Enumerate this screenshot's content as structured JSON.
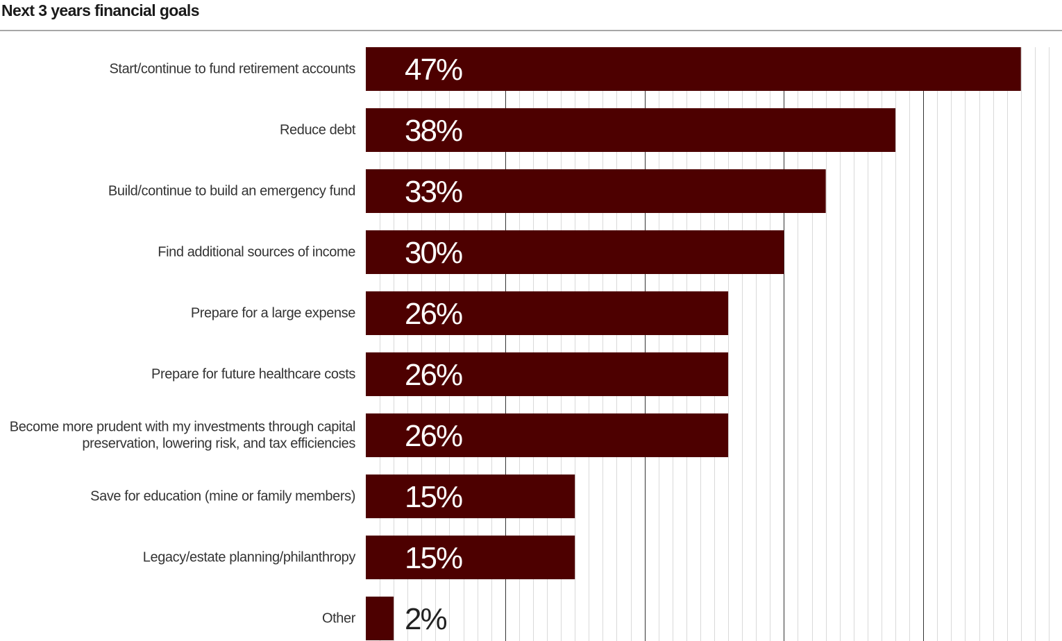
{
  "title": "Next 3 years financial goals",
  "chart_data": {
    "type": "bar",
    "orientation": "horizontal",
    "title": "Next 3 years financial goals",
    "xlabel": "",
    "ylabel": "",
    "xlim": [
      0,
      50
    ],
    "grid": true,
    "legend": "none",
    "categories": [
      "Start/continue to fund retirement accounts",
      "Reduce debt",
      "Build/continue to build an emergency fund",
      "Find additional sources of income",
      "Prepare for a large expense",
      "Prepare for future healthcare costs",
      "Become more prudent with my investments through capital preservation, lowering risk, and tax efficiencies",
      "Save for education (mine or family members)",
      "Legacy/estate planning/philanthropy",
      "Other"
    ],
    "category_lines": [
      [
        "Start/continue to fund retirement accounts"
      ],
      [
        "Reduce debt"
      ],
      [
        "Build/continue to build an emergency fund"
      ],
      [
        "Find additional sources of income"
      ],
      [
        "Prepare for a large expense"
      ],
      [
        "Prepare for future healthcare costs"
      ],
      [
        "Become more prudent with my investments through capital",
        "preservation, lowering risk, and tax efficiencies"
      ],
      [
        "Save for education (mine or family members)"
      ],
      [
        "Legacy/estate planning/philanthropy"
      ],
      [
        "Other"
      ]
    ],
    "values": [
      47,
      38,
      33,
      30,
      26,
      26,
      26,
      15,
      15,
      2
    ],
    "value_labels": [
      "47%",
      "38%",
      "33%",
      "30%",
      "26%",
      "26%",
      "26%",
      "15%",
      "15%",
      "2%"
    ],
    "colors": {
      "bar": "#4d0000",
      "value_text_inside": "#ffffff",
      "value_text_outside": "#222222",
      "major_grid": "#333333",
      "minor_grid": "#d9d9d9",
      "category_text": "#333333"
    }
  }
}
